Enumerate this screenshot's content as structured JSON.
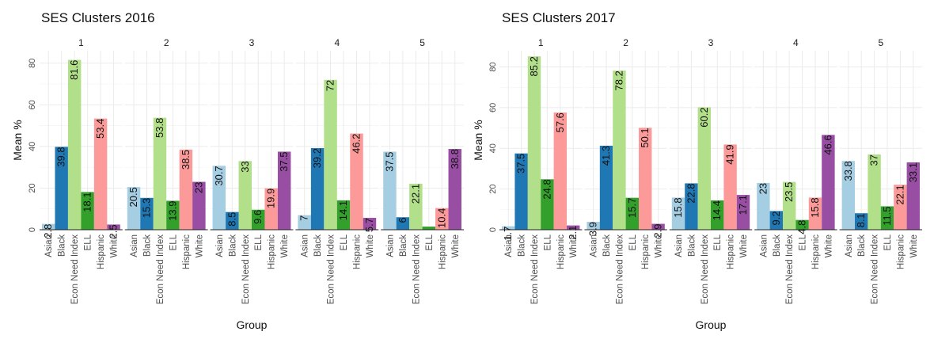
{
  "colors": {
    "Asian": "#a6cee3",
    "Black": "#1f78b4",
    "Econ Need Index": "#b2df8a",
    "ELL": "#33a02c",
    "Hispanic": "#fb9a99",
    "White": "#984ea3"
  },
  "chart_data": [
    {
      "type": "bar",
      "title": "SES Clusters 2016",
      "xlabel": "Group",
      "ylabel": "Mean %",
      "ylim": [
        0,
        86
      ],
      "yticks": [
        0,
        20,
        40,
        60,
        80
      ],
      "grid": true,
      "categories": [
        "Asian",
        "Black",
        "Econ Need Index",
        "ELL",
        "Hispanic",
        "White"
      ],
      "facets": [
        {
          "label": "1",
          "values": [
            2.8,
            39.8,
            81.6,
            18.1,
            53.4,
            2.5
          ],
          "labels": [
            "2.8",
            "39.8",
            "81.6",
            "18.1",
            "53.4",
            "2.5"
          ]
        },
        {
          "label": "2",
          "values": [
            20.5,
            15.3,
            53.8,
            13.9,
            38.5,
            23
          ],
          "labels": [
            "20.5",
            "15.3",
            "53.8",
            "13.9",
            "38.5",
            "23"
          ]
        },
        {
          "label": "3",
          "values": [
            30.7,
            8.5,
            33,
            9.6,
            19.9,
            37.5
          ],
          "labels": [
            "30.7",
            "8.5",
            "33",
            "9.6",
            "19.9",
            "37.5"
          ]
        },
        {
          "label": "4",
          "values": [
            7,
            39.2,
            72,
            14.1,
            46.2,
            5.7
          ],
          "labels": [
            "7",
            "39.2",
            "72",
            "14.1",
            "46.2",
            "5.7"
          ]
        },
        {
          "label": "5",
          "values": [
            37.5,
            6,
            22.1,
            1.5,
            10.4,
            38.8
          ],
          "labels": [
            "37.5",
            "6",
            "22.1",
            "",
            "10.4",
            "38.8"
          ]
        }
      ]
    },
    {
      "type": "bar",
      "title": "SES Clusters 2017",
      "xlabel": "Group",
      "ylabel": "Mean %",
      "ylim": [
        0,
        88
      ],
      "yticks": [
        0,
        20,
        40,
        60,
        80
      ],
      "grid": true,
      "categories": [
        "Asian",
        "Black",
        "Econ Need Index",
        "ELL",
        "Hispanic",
        "White"
      ],
      "facets": [
        {
          "label": "1",
          "values": [
            1.7,
            37.5,
            85.2,
            24.8,
            57.6,
            2.1
          ],
          "labels": [
            "1.7",
            "37.5",
            "85.2",
            "24.8",
            "57.6",
            "2.1"
          ]
        },
        {
          "label": "2",
          "values": [
            3.9,
            41.3,
            78.2,
            15.7,
            50.1,
            2.9
          ],
          "labels": [
            "3.9",
            "41.3",
            "78.2",
            "15.7",
            "50.1",
            "2.9"
          ]
        },
        {
          "label": "3",
          "values": [
            15.8,
            22.8,
            60.2,
            14.4,
            41.9,
            17.1
          ],
          "labels": [
            "15.8",
            "22.8",
            "60.2",
            "14.4",
            "41.9",
            "17.1"
          ]
        },
        {
          "label": "4",
          "values": [
            23,
            9.2,
            23.5,
            4.8,
            15.8,
            46.6
          ],
          "labels": [
            "23",
            "9.2",
            "23.5",
            "4.8",
            "15.8",
            "46.6"
          ]
        },
        {
          "label": "5",
          "values": [
            33.8,
            8.1,
            37,
            11.5,
            22.1,
            33.1
          ],
          "labels": [
            "33.8",
            "8.1",
            "37",
            "11.5",
            "22.1",
            "33.1"
          ]
        }
      ]
    }
  ]
}
